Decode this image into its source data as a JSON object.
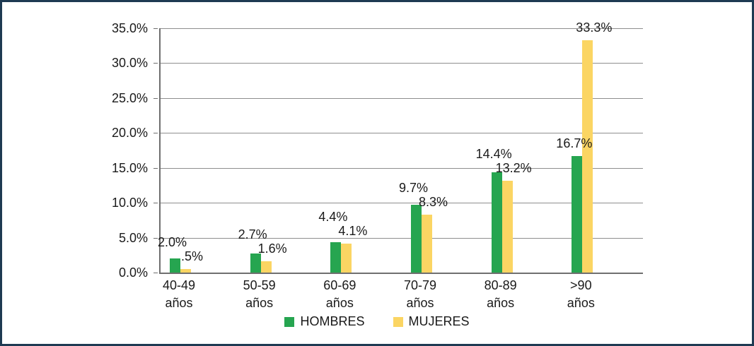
{
  "chart_data": {
    "type": "bar",
    "title": "",
    "categories": [
      "40-49 años",
      "50-59 años",
      "60-69 años",
      "70-79 años",
      "80-89 años",
      ">90 años"
    ],
    "series": [
      {
        "name": "HOMBRES",
        "color": "#26a550",
        "values": [
          2.0,
          2.7,
          4.4,
          9.7,
          14.4,
          16.7
        ],
        "labels": [
          "2.0%",
          "2.7%",
          "4.4%",
          "9.7%",
          "14.4%",
          "16.7%"
        ]
      },
      {
        "name": "MUJERES",
        "color": "#fbd563",
        "values": [
          0.5,
          1.6,
          4.1,
          8.3,
          13.2,
          33.3
        ],
        "labels": [
          ".5%",
          "1.6%",
          "4.1%",
          "8.3%",
          "13.2%",
          "33.3%"
        ]
      }
    ],
    "y_axis": {
      "min": 0,
      "max": 35,
      "step": 5,
      "ticks": [
        {
          "value": 0,
          "label": "0.0%"
        },
        {
          "value": 5,
          "label": "5.0%"
        },
        {
          "value": 10,
          "label": "10.0%"
        },
        {
          "value": 15,
          "label": "15.0%"
        },
        {
          "value": 20,
          "label": "20.0%"
        },
        {
          "value": 25,
          "label": "25.0%"
        },
        {
          "value": 30,
          "label": "30.0%"
        },
        {
          "value": 35,
          "label": "35.0%"
        }
      ]
    },
    "legend": {
      "position": "bottom",
      "entries": [
        "HOMBRES",
        "MUJERES"
      ]
    },
    "grid": true,
    "colors": {
      "frame_border": "#1e3a52",
      "gridline": "#8e8e8e",
      "axis": "#6f6f6f",
      "text": "#1a1a1a",
      "background": "#ffffff"
    }
  }
}
